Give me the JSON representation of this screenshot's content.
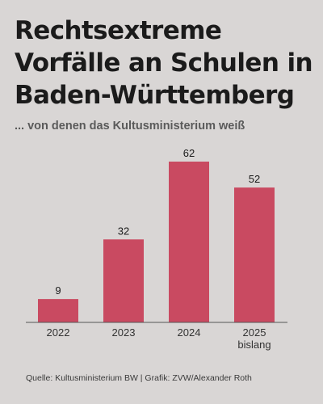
{
  "title": "Rechtsextreme Vorfälle an Schulen in Baden-Württemberg",
  "subtitle": "... von denen das Kultusministerium weiß",
  "source": "Quelle: Kultusministerium BW | Grafik: ZVW/Alexander Roth",
  "colors": {
    "background": "#d9d6d5",
    "bar": "#c94a61",
    "axis": "#555555",
    "text": "#1b1b1b"
  },
  "chart_data": {
    "type": "bar",
    "categories": [
      [
        "2022"
      ],
      [
        "2023"
      ],
      [
        "2024"
      ],
      [
        "2025",
        "bislang"
      ]
    ],
    "values": [
      9,
      32,
      62,
      52
    ],
    "data_labels": [
      "9",
      "32",
      "62",
      "52"
    ],
    "xlabel": "",
    "ylabel": "",
    "ylim": [
      0,
      62
    ],
    "grid": false,
    "legend": "none"
  }
}
